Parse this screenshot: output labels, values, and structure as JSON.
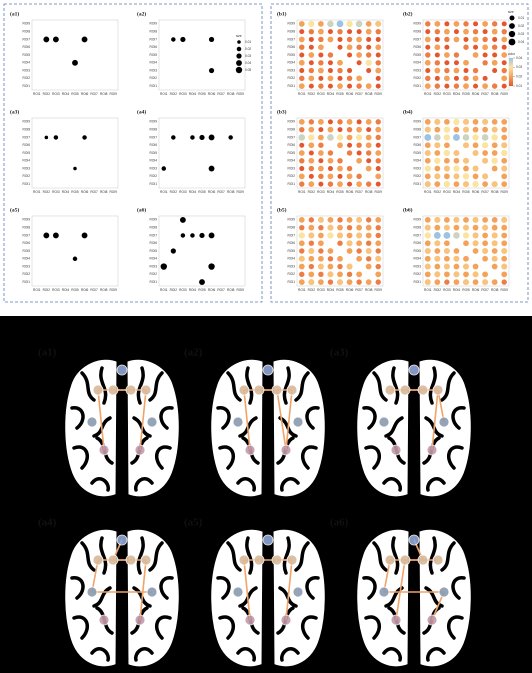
{
  "roi_labels": [
    "ROI1",
    "ROI2",
    "ROI3",
    "ROI4",
    "ROI5",
    "ROI6",
    "ROI7",
    "ROI8",
    "ROI9"
  ],
  "left_panels": [
    {
      "label": "(a1)",
      "points": [
        {
          "x": "ROI2",
          "y": "ROI7",
          "size": 0.04
        },
        {
          "x": "ROI3",
          "y": "ROI7",
          "size": 0.04
        },
        {
          "x": "ROI6",
          "y": "ROI7",
          "size": 0.04
        },
        {
          "x": "ROI5",
          "y": "ROI4",
          "size": 0.04
        }
      ]
    },
    {
      "label": "(a2)",
      "points": [
        {
          "x": "ROI2",
          "y": "ROI7",
          "size": 0.02
        },
        {
          "x": "ROI3",
          "y": "ROI7",
          "size": 0.03
        },
        {
          "x": "ROI6",
          "y": "ROI7",
          "size": 0.03
        },
        {
          "x": "ROI6",
          "y": "ROI3",
          "size": 0.03
        }
      ]
    },
    {
      "label": "(a3)",
      "points": [
        {
          "x": "ROI2",
          "y": "ROI7",
          "size": 0.01
        },
        {
          "x": "ROI3",
          "y": "ROI7",
          "size": 0.02
        },
        {
          "x": "ROI6",
          "y": "ROI7",
          "size": 0.02
        },
        {
          "x": "ROI5",
          "y": "ROI3",
          "size": 0.01
        }
      ]
    },
    {
      "label": "(a4)",
      "points": [
        {
          "x": "ROI2",
          "y": "ROI7",
          "size": 0.02
        },
        {
          "x": "ROI4",
          "y": "ROI7",
          "size": 0.02
        },
        {
          "x": "ROI5",
          "y": "ROI7",
          "size": 0.03
        },
        {
          "x": "ROI6",
          "y": "ROI7",
          "size": 0.04
        },
        {
          "x": "ROI8",
          "y": "ROI7",
          "size": 0.02
        },
        {
          "x": "ROI1",
          "y": "ROI3",
          "size": 0.02
        },
        {
          "x": "ROI6",
          "y": "ROI3",
          "size": 0.04
        }
      ]
    },
    {
      "label": "(a5)",
      "points": [
        {
          "x": "ROI2",
          "y": "ROI7",
          "size": 0.04
        },
        {
          "x": "ROI3",
          "y": "ROI7",
          "size": 0.04
        },
        {
          "x": "ROI6",
          "y": "ROI7",
          "size": 0.04
        },
        {
          "x": "ROI5",
          "y": "ROI4",
          "size": 0.02
        }
      ]
    },
    {
      "label": "(a6)",
      "points": [
        {
          "x": "ROI3",
          "y": "ROI9",
          "size": 0.04
        },
        {
          "x": "ROI3",
          "y": "ROI7",
          "size": 0.02
        },
        {
          "x": "ROI4",
          "y": "ROI7",
          "size": 0.02
        },
        {
          "x": "ROI5",
          "y": "ROI7",
          "size": 0.03
        },
        {
          "x": "ROI6",
          "y": "ROI7",
          "size": 0.04
        },
        {
          "x": "ROI2",
          "y": "ROI5",
          "size": 0.03
        },
        {
          "x": "ROI1",
          "y": "ROI3",
          "size": 0.05
        },
        {
          "x": "ROI6",
          "y": "ROI3",
          "size": 0.05
        },
        {
          "x": "ROI5",
          "y": "ROI1",
          "size": 0.04
        }
      ]
    }
  ],
  "left_size_legend": {
    "title": "size",
    "ticks": [
      0.01,
      0.02,
      0.03,
      0.04,
      0.05
    ]
  },
  "right_panels": [
    {
      "label": "(b1)",
      "values": [
        [
          0.02,
          0.03,
          0.02,
          0.035,
          0.04,
          0.03,
          0.035,
          0.02,
          0.025
        ],
        [
          0.01,
          0.015,
          0.02,
          0.01,
          0.015,
          0.01,
          0.01,
          0.02,
          0.015
        ],
        [
          0.02,
          0.01,
          0.015,
          0.02,
          0.01,
          0.015,
          0.02,
          0.01,
          0.01
        ],
        [
          0.015,
          0.01,
          0.02,
          null,
          0.01,
          0.02,
          0.015,
          0.01,
          0.02
        ],
        [
          0.01,
          0.02,
          0.01,
          0.015,
          null,
          0.01,
          0.02,
          0.015,
          0.01
        ],
        [
          0.02,
          0.01,
          0.015,
          0.01,
          0.02,
          null,
          0.01,
          0.03,
          0.015
        ],
        [
          0.01,
          0.015,
          0.02,
          0.01,
          0.015,
          0.01,
          null,
          0.01,
          0.02
        ],
        [
          0.015,
          0.02,
          0.01,
          0.02,
          0.01,
          0.015,
          0.02,
          null,
          0.01
        ],
        [
          0.02,
          0.01,
          0.015,
          0.01,
          0.02,
          0.01,
          0.015,
          0.02,
          0.01
        ]
      ]
    },
    {
      "label": "(b2)",
      "values": [
        [
          0.015,
          0.02,
          0.01,
          0.02,
          0.015,
          0.01,
          0.02,
          0.015,
          0.01
        ],
        [
          0.01,
          0.015,
          0.02,
          0.01,
          0.02,
          0.015,
          0.01,
          0.02,
          0.015
        ],
        [
          0.02,
          0.01,
          0.015,
          0.02,
          0.01,
          0.02,
          0.015,
          0.01,
          0.02
        ],
        [
          0.01,
          0.02,
          0.01,
          null,
          0.015,
          0.01,
          0.02,
          0.015,
          0.01
        ],
        [
          0.015,
          0.01,
          0.02,
          0.015,
          null,
          0.02,
          0.01,
          0.01,
          0.02
        ],
        [
          0.02,
          0.015,
          0.01,
          0.01,
          0.02,
          null,
          0.015,
          0.02,
          0.01
        ],
        [
          0.01,
          0.02,
          0.015,
          0.02,
          0.01,
          0.015,
          null,
          0.01,
          0.015
        ],
        [
          0.015,
          0.01,
          0.02,
          0.01,
          0.015,
          0.02,
          0.01,
          null,
          0.02
        ],
        [
          0.02,
          0.015,
          0.01,
          0.015,
          0.02,
          0.01,
          0.02,
          0.015,
          0.01
        ]
      ]
    },
    {
      "label": "(b3)",
      "values": [
        [
          0.02,
          0.015,
          0.02,
          0.01,
          0.015,
          0.02,
          0.01,
          0.02,
          0.015
        ],
        [
          0.015,
          0.02,
          0.01,
          0.02,
          0.01,
          0.015,
          0.02,
          0.01,
          0.02
        ],
        [
          0.035,
          0.03,
          0.02,
          0.035,
          0.03,
          0.02,
          0.03,
          0.02,
          0.015
        ],
        [
          0.01,
          0.02,
          0.015,
          null,
          0.02,
          0.01,
          0.015,
          0.02,
          0.01
        ],
        [
          0.02,
          0.01,
          0.02,
          0.015,
          null,
          0.015,
          0.01,
          0.015,
          0.02
        ],
        [
          0.015,
          0.02,
          0.01,
          0.02,
          0.015,
          null,
          0.02,
          0.01,
          0.015
        ],
        [
          0.01,
          0.015,
          0.02,
          0.01,
          0.02,
          0.015,
          null,
          0.02,
          0.01
        ],
        [
          0.02,
          0.01,
          0.015,
          0.02,
          0.01,
          0.02,
          0.015,
          null,
          0.02
        ],
        [
          0.015,
          0.02,
          0.01,
          0.015,
          0.02,
          0.01,
          0.02,
          0.015,
          0.01
        ]
      ]
    },
    {
      "label": "(b4)",
      "values": [
        [
          0.02,
          0.025,
          0.02,
          0.03,
          0.025,
          0.02,
          0.025,
          0.02,
          0.02
        ],
        [
          0.025,
          0.02,
          0.03,
          0.02,
          0.025,
          0.02,
          0.02,
          0.025,
          0.02
        ],
        [
          0.04,
          0.035,
          0.03,
          0.04,
          0.035,
          0.03,
          0.035,
          0.03,
          0.02
        ],
        [
          0.02,
          0.025,
          0.02,
          null,
          0.025,
          0.02,
          0.03,
          0.02,
          0.025
        ],
        [
          0.025,
          0.02,
          0.03,
          0.025,
          null,
          0.025,
          0.02,
          0.02,
          0.03
        ],
        [
          0.02,
          0.03,
          0.02,
          0.02,
          0.025,
          null,
          0.025,
          0.03,
          0.02
        ],
        [
          0.03,
          0.02,
          0.025,
          0.03,
          0.02,
          0.025,
          null,
          0.02,
          0.025
        ],
        [
          0.02,
          0.025,
          0.02,
          0.025,
          0.03,
          0.02,
          0.025,
          null,
          0.02
        ],
        [
          0.025,
          0.02,
          0.03,
          0.02,
          0.025,
          0.03,
          0.02,
          0.025,
          0.02
        ]
      ]
    },
    {
      "label": "(b5)",
      "values": [
        [
          0.02,
          0.015,
          0.025,
          0.02,
          0.015,
          0.02,
          0.025,
          0.015,
          0.02
        ],
        [
          0.015,
          0.02,
          0.015,
          0.025,
          0.02,
          0.015,
          0.02,
          0.02,
          0.015
        ],
        [
          0.03,
          0.025,
          0.02,
          0.03,
          0.025,
          0.02,
          0.025,
          0.02,
          0.015
        ],
        [
          0.02,
          0.015,
          0.02,
          null,
          0.015,
          0.025,
          0.02,
          0.015,
          0.02
        ],
        [
          0.015,
          0.025,
          0.015,
          0.02,
          null,
          0.02,
          0.015,
          0.025,
          0.015
        ],
        [
          0.025,
          0.02,
          0.02,
          0.015,
          0.02,
          null,
          0.02,
          0.015,
          0.025
        ],
        [
          0.02,
          0.015,
          0.025,
          0.02,
          0.015,
          0.025,
          null,
          0.02,
          0.015
        ],
        [
          0.015,
          0.02,
          0.015,
          0.025,
          0.02,
          0.015,
          0.02,
          null,
          0.02
        ],
        [
          0.02,
          0.025,
          0.02,
          0.015,
          0.025,
          0.02,
          0.015,
          0.02,
          0.015
        ]
      ]
    },
    {
      "label": "(b6)",
      "values": [
        [
          0.02,
          0.025,
          0.02,
          0.025,
          0.02,
          0.025,
          0.02,
          0.02,
          0.025
        ],
        [
          0.025,
          0.02,
          0.025,
          0.02,
          0.025,
          0.02,
          0.025,
          0.02,
          0.02
        ],
        [
          0.03,
          0.04,
          0.04,
          0.035,
          0.03,
          0.025,
          0.02,
          0.025,
          0.02
        ],
        [
          0.02,
          0.025,
          0.02,
          null,
          0.02,
          0.025,
          0.02,
          0.025,
          0.02
        ],
        [
          0.025,
          0.02,
          0.025,
          0.02,
          null,
          0.02,
          0.025,
          0.02,
          0.025
        ],
        [
          0.02,
          0.025,
          0.02,
          0.025,
          0.02,
          null,
          0.02,
          0.025,
          0.02
        ],
        [
          0.025,
          0.02,
          0.025,
          0.02,
          0.025,
          0.02,
          null,
          0.02,
          0.025
        ],
        [
          0.02,
          0.025,
          0.02,
          0.025,
          0.02,
          0.025,
          0.02,
          null,
          0.02
        ],
        [
          0.025,
          0.02,
          0.015,
          0.02,
          0.025,
          0.02,
          0.025,
          0.02,
          0.015
        ]
      ]
    }
  ],
  "right_legend": {
    "size_title": "size",
    "size_ticks": [
      0.01,
      0.02,
      0.03,
      0.04
    ],
    "color_title": "color",
    "color_ticks": [
      0.01,
      0.02,
      0.03,
      0.04
    ],
    "colorscale": [
      "#e4572e",
      "#f4a259",
      "#fbe3a0",
      "#9cc3e4"
    ]
  },
  "brain_panels": [
    "(a1)",
    "(a2)",
    "(a3)",
    "(a4)",
    "(a5)",
    "(a6)"
  ]
}
